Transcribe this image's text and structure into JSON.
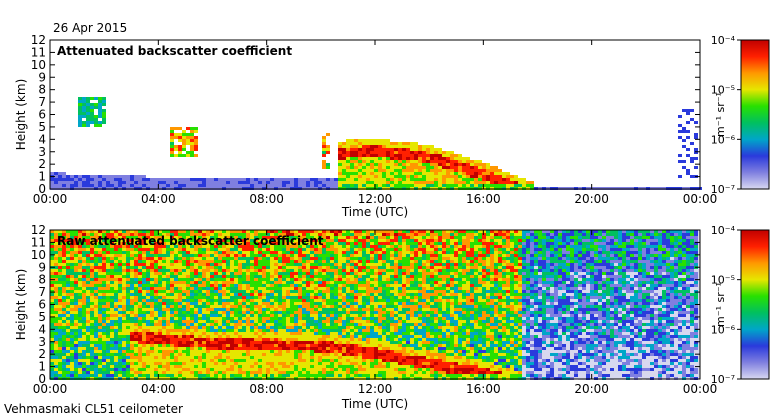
{
  "date": "26 Apr 2015",
  "footer": "Vehmasmaki CL51 ceilometer",
  "colormap": [
    "#d8d8f0",
    "#7f7fe0",
    "#2a3adc",
    "#00a6c8",
    "#00c060",
    "#28e000",
    "#e6e600",
    "#ff9800",
    "#ff2000",
    "#c00000"
  ],
  "chart_data": [
    {
      "type": "heatmap",
      "title": "Attenuated backscatter coefficient",
      "xlabel": "Time (UTC)",
      "ylabel": "Height (km)",
      "xlim": [
        0,
        24
      ],
      "ylim": [
        0,
        12
      ],
      "xticks": [
        "00:00",
        "04:00",
        "08:00",
        "12:00",
        "16:00",
        "20:00",
        "00:00"
      ],
      "yticks": [
        "0",
        "1",
        "2",
        "3",
        "4",
        "5",
        "6",
        "7",
        "8",
        "9",
        "10",
        "11",
        "12"
      ],
      "colorbar": {
        "label": "m⁻¹ sr⁻¹",
        "tick_labels": [
          "10⁻⁷",
          "10⁻⁶",
          "10⁻⁵",
          "10⁻⁴"
        ],
        "tick_log_values": [
          -7,
          -6,
          -5,
          -4
        ]
      },
      "features": [
        {
          "kind": "boundary_layer",
          "note": "low backscatter near surface all day",
          "top_km": [
            [
              0,
              1.3
            ],
            [
              6,
              0.8
            ],
            [
              10,
              1.0
            ],
            [
              12,
              0.8
            ],
            [
              16,
              0.4
            ],
            [
              18,
              0.1
            ],
            [
              24,
              0.2
            ]
          ]
        },
        {
          "kind": "cloud",
          "note": "small patches 01:00-02:00",
          "time_h": [
            1.1,
            2.1
          ],
          "height_km": [
            5.0,
            7.3
          ],
          "intensity": 0.6
        },
        {
          "kind": "cloud",
          "note": "cloud near 04:30",
          "time_h": [
            4.4,
            5.4
          ],
          "height_km": [
            2.6,
            5.0
          ],
          "intensity": 0.95
        },
        {
          "kind": "cloud",
          "note": "thin column near 10:10",
          "time_h": [
            10.0,
            10.3
          ],
          "height_km": [
            1.5,
            4.6
          ],
          "intensity": 0.9
        },
        {
          "kind": "cloud",
          "note": "main cloud band 10:40-17:40",
          "time_h": [
            10.6,
            17.8
          ],
          "top_km": [
            [
              10.6,
              3.6
            ],
            [
              12,
              3.8
            ],
            [
              14,
              3.3
            ],
            [
              16,
              1.9
            ],
            [
              17.8,
              0.3
            ]
          ],
          "intensity": 1.0
        },
        {
          "kind": "aerosol",
          "note": "scattered signal near 23:30",
          "time_h": [
            23.2,
            24
          ],
          "height_km": [
            1.0,
            6.5
          ],
          "intensity": 0.3
        }
      ]
    },
    {
      "type": "heatmap",
      "title": "Raw attenuated backscatter coefficient",
      "xlabel": "Time (UTC)",
      "ylabel": "Height (km)",
      "xlim": [
        0,
        24
      ],
      "ylim": [
        0,
        12
      ],
      "xticks": [
        "00:00",
        "04:00",
        "08:00",
        "12:00",
        "16:00",
        "20:00",
        "00:00"
      ],
      "yticks": [
        "0",
        "1",
        "2",
        "3",
        "4",
        "5",
        "6",
        "7",
        "8",
        "9",
        "10",
        "11",
        "12"
      ],
      "colorbar": {
        "label": "m⁻¹ sr⁻¹",
        "tick_labels": [
          "10⁻⁷",
          "10⁻⁶",
          "10⁻⁵",
          "10⁻⁴"
        ],
        "tick_log_values": [
          -7,
          -6,
          -5,
          -4
        ]
      },
      "features": [
        {
          "kind": "noise",
          "note": "daytime background noise (green/yellow/red) 00:00-17:30",
          "time_h": [
            0,
            17.5
          ],
          "height_km": [
            0,
            12
          ],
          "intensity": 0.45
        },
        {
          "kind": "noise",
          "note": "night-time noise (blue/white) 18:00-24:00",
          "time_h": [
            17.5,
            24
          ],
          "height_km": [
            0,
            12
          ],
          "intensity": 0.12
        },
        {
          "kind": "cloud",
          "note": "cloud band descending from ~4 km at 03:00 to ~0.3 km at 17:30",
          "top_km": [
            [
              3.0,
              4.2
            ],
            [
              6,
              3.6
            ],
            [
              10,
              3.4
            ],
            [
              12,
              2.8
            ],
            [
              14,
              2.0
            ],
            [
              16,
              1.2
            ],
            [
              17.5,
              0.3
            ]
          ],
          "intensity": 1.0
        }
      ]
    }
  ]
}
